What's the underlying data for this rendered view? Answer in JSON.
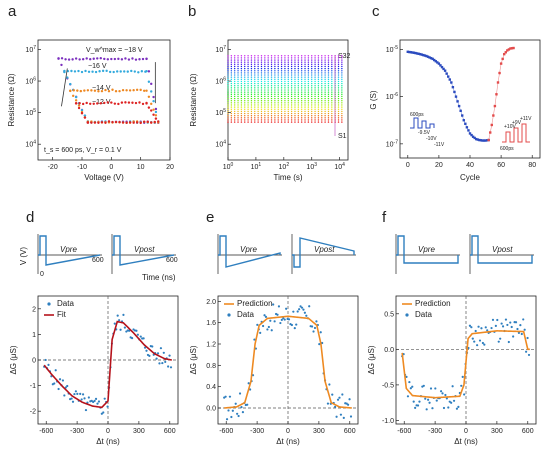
{
  "chart_data": [
    {
      "panel": "a",
      "type": "line",
      "xlabel": "Voltage (V)",
      "ylabel": "Resistance (Ω)",
      "xlim": [
        -25,
        20
      ],
      "ylog": true,
      "ylim_exp": [
        3.5,
        7.3
      ],
      "xticks": [
        "-20",
        "-10",
        "0",
        "10",
        "20"
      ],
      "yticks": [
        "10^4",
        "10^5",
        "10^6",
        "10^7"
      ],
      "annotations": [
        "V_w^max = −18 V",
        "−16 V",
        "−14 V",
        "−12 V",
        "t_s = 600 ps, V_r = 0.1 V"
      ],
      "series": [
        {
          "name": "−18 V",
          "color": "#7b2fbe",
          "low_exp": 6.7,
          "high_exp": 4.7,
          "vmin": -18
        },
        {
          "name": "−16 V",
          "color": "#33aadd",
          "low_exp": 6.3,
          "high_exp": 4.7,
          "vmin": -16
        },
        {
          "name": "−14 V",
          "color": "#ee8822",
          "low_exp": 5.7,
          "high_exp": 4.7,
          "vmin": -14
        },
        {
          "name": "−12 V",
          "color": "#dd2222",
          "low_exp": 5.3,
          "high_exp": 4.7,
          "vmin": -12
        }
      ]
    },
    {
      "panel": "b",
      "type": "line",
      "xlabel": "Time (s)",
      "ylabel": "Resistance (Ω)",
      "xlog": true,
      "xlim_exp": [
        0,
        4.3
      ],
      "ylog": true,
      "ylim_exp": [
        3.5,
        7.3
      ],
      "xticks": [
        "10^0",
        "10^1",
        "10^2",
        "10^3",
        "10^4"
      ],
      "yticks": [
        "10^4",
        "10^5",
        "10^6",
        "10^7"
      ],
      "states": 32,
      "state_low_exp": 4.7,
      "state_high_exp": 6.8,
      "labels": [
        "S32",
        "S1"
      ]
    },
    {
      "panel": "c",
      "type": "scatter",
      "xlabel": "Cycle",
      "ylabel": "G (S)",
      "xlim": [
        -5,
        85
      ],
      "ylog": true,
      "ylim_exp": [
        -7.3,
        -4.8
      ],
      "xticks": [
        "0",
        "20",
        "40",
        "60",
        "80"
      ],
      "yticks": [
        "10^-7",
        "10^-6",
        "10^-5"
      ],
      "series": [
        {
          "name": "depression",
          "color": "#2b4bbf",
          "x": [
            0,
            4,
            8,
            12,
            16,
            20,
            24,
            28,
            30,
            32,
            34,
            36,
            38,
            40,
            42,
            44,
            46,
            48,
            50,
            52
          ],
          "y_exp": [
            -5.05,
            -5.07,
            -5.1,
            -5.14,
            -5.2,
            -5.3,
            -5.45,
            -5.7,
            -5.9,
            -6.1,
            -6.3,
            -6.5,
            -6.65,
            -6.78,
            -6.85,
            -6.9,
            -6.92,
            -6.93,
            -6.93,
            -6.92
          ]
        },
        {
          "name": "potentiation",
          "color": "#e34b4b",
          "x": [
            52,
            54,
            56,
            58,
            60,
            62,
            64,
            66,
            68
          ],
          "y_exp": [
            -6.92,
            -6.6,
            -6.2,
            -5.7,
            -5.3,
            -5.1,
            -5.02,
            -4.98,
            -4.97
          ]
        }
      ],
      "insets": [
        "600ps",
        "-9.5V",
        "-10V",
        "-11V",
        "600ps",
        "+10V",
        "+9V",
        "+11V"
      ]
    },
    {
      "panel": "d",
      "type": "scatter",
      "xlabel": "Δt (ns)",
      "ylabel": "ΔG (μS)",
      "xlim": [
        -680,
        680
      ],
      "ylim": [
        -2.5,
        2.5
      ],
      "xticks": [
        "-600",
        "-300",
        "0",
        "300",
        "600"
      ],
      "yticks": [
        "-2",
        "-1",
        "0",
        "1",
        "2"
      ],
      "legend": [
        "Data",
        "Fit"
      ],
      "fit_color": "#b5121b",
      "data_color": "#2f7fbf",
      "pulse_labels": [
        "V_pre",
        "V_post"
      ],
      "pulse_xlabel": "Time (ns)",
      "pulse_ylabel": "V (V)",
      "pulse_ticks": [
        "0",
        "600"
      ],
      "fit_points": [
        [
          -620,
          -0.2
        ],
        [
          -550,
          -0.55
        ],
        [
          -450,
          -1.0
        ],
        [
          -350,
          -1.4
        ],
        [
          -250,
          -1.65
        ],
        [
          -150,
          -1.8
        ],
        [
          -60,
          -1.85
        ],
        [
          0,
          -1.6
        ],
        [
          40,
          0.8
        ],
        [
          90,
          1.5
        ],
        [
          150,
          1.45
        ],
        [
          250,
          1.05
        ],
        [
          350,
          0.6
        ],
        [
          450,
          0.25
        ],
        [
          550,
          0.05
        ],
        [
          620,
          0.0
        ]
      ]
    },
    {
      "panel": "e",
      "type": "scatter",
      "xlabel": "Δt (ns)",
      "ylabel": "ΔG (μS)",
      "xlim": [
        -680,
        680
      ],
      "ylim": [
        -0.3,
        2.1
      ],
      "xticks": [
        "-600",
        "-300",
        "0",
        "300",
        "600"
      ],
      "yticks": [
        "0.0",
        "0.4",
        "0.8",
        "1.2",
        "1.6",
        "2.0"
      ],
      "legend": [
        "Prediction",
        "Data"
      ],
      "fit_color": "#ee8a22",
      "data_color": "#2f7fbf",
      "pulse_labels": [
        "V_pre",
        "V_post"
      ],
      "fit_points": [
        [
          -620,
          0.0
        ],
        [
          -500,
          0.02
        ],
        [
          -420,
          0.1
        ],
        [
          -360,
          0.5
        ],
        [
          -320,
          1.2
        ],
        [
          -280,
          1.55
        ],
        [
          -200,
          1.68
        ],
        [
          0,
          1.72
        ],
        [
          200,
          1.68
        ],
        [
          280,
          1.55
        ],
        [
          320,
          1.2
        ],
        [
          360,
          0.5
        ],
        [
          420,
          0.1
        ],
        [
          500,
          0.02
        ],
        [
          620,
          0.0
        ]
      ]
    },
    {
      "panel": "f",
      "type": "scatter",
      "xlabel": "Δt (ns)",
      "ylabel": "ΔG (μS)",
      "xlim": [
        -680,
        680
      ],
      "ylim": [
        -1.05,
        0.75
      ],
      "xticks": [
        "-600",
        "-300",
        "0",
        "300",
        "600"
      ],
      "yticks": [
        "-1.0",
        "-0.5",
        "0.0",
        "0.5"
      ],
      "legend": [
        "Prediction",
        "Data"
      ],
      "fit_color": "#ee8a22",
      "data_color": "#2f7fbf",
      "pulse_labels": [
        "V_pre",
        "V_post"
      ],
      "fit_points": [
        [
          -620,
          -0.05
        ],
        [
          -580,
          -0.55
        ],
        [
          -520,
          -0.65
        ],
        [
          -300,
          -0.68
        ],
        [
          -60,
          -0.66
        ],
        [
          -20,
          -0.5
        ],
        [
          20,
          0.15
        ],
        [
          60,
          0.22
        ],
        [
          300,
          0.26
        ],
        [
          560,
          0.25
        ],
        [
          600,
          0.0
        ]
      ]
    }
  ]
}
